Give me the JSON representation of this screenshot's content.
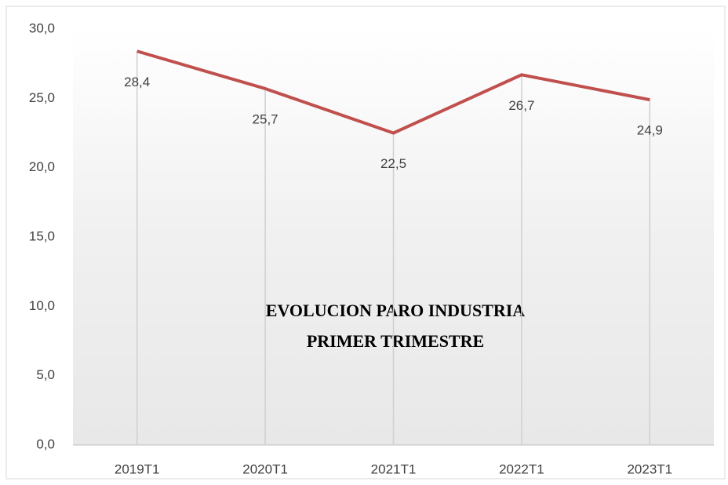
{
  "chart_data": {
    "type": "line",
    "title": [
      "EVOLUCION PARO INDUSTRIA",
      "PRIMER TRIMESTRE"
    ],
    "categories": [
      "2019T1",
      "2020T1",
      "2021T1",
      "2022T1",
      "2023T1"
    ],
    "values": [
      28.4,
      25.7,
      22.5,
      26.7,
      24.9
    ],
    "value_labels": [
      "28,4",
      "25,7",
      "22,5",
      "26,7",
      "24,9"
    ],
    "color": "#c0504d",
    "ylim": [
      0,
      30
    ],
    "yticks": [
      {
        "value": 0,
        "label": "0,0"
      },
      {
        "value": 5,
        "label": "5,0"
      },
      {
        "value": 10,
        "label": "10,0"
      },
      {
        "value": 15,
        "label": "15,0"
      },
      {
        "value": 20,
        "label": "20,0"
      },
      {
        "value": 25,
        "label": "25,0"
      },
      {
        "value": 30,
        "label": "30,0"
      }
    ],
    "drop_lines": true
  }
}
